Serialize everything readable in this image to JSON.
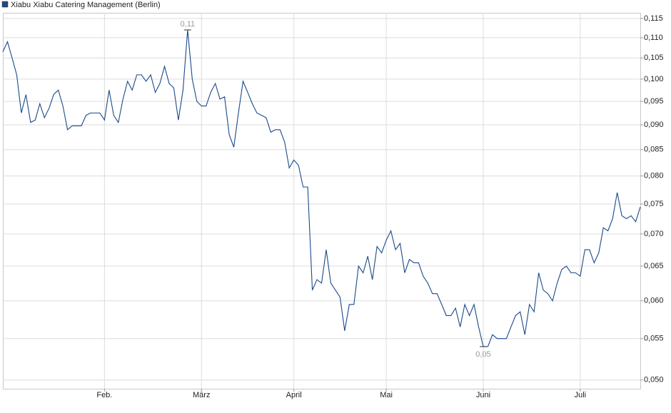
{
  "chart_data": {
    "type": "line",
    "log_scale": true,
    "grid": true,
    "legend": "top-left",
    "x": [
      0,
      1,
      2,
      3,
      4,
      5,
      6,
      7,
      8,
      9,
      10,
      11,
      12,
      13,
      14,
      15,
      16,
      17,
      18,
      19,
      20,
      21,
      22,
      23,
      24,
      25,
      26,
      27,
      28,
      29,
      30,
      31,
      32,
      33,
      34,
      35,
      36,
      37,
      38,
      39,
      40,
      41,
      42,
      43,
      44,
      45,
      46,
      47,
      48,
      49,
      50,
      51,
      52,
      53,
      54,
      55,
      56,
      57,
      58,
      59,
      60,
      61,
      62,
      63,
      64,
      65,
      66,
      67,
      68,
      69,
      70,
      71,
      72,
      73,
      74,
      75,
      76,
      77,
      78,
      79,
      80,
      81,
      82,
      83,
      84,
      85,
      86,
      87,
      88,
      89,
      90,
      91,
      92,
      93,
      94,
      95,
      96,
      97,
      98,
      99,
      100,
      101,
      102,
      103,
      104,
      105,
      106,
      107,
      108,
      109,
      110,
      111,
      112,
      113,
      114,
      115,
      116,
      117,
      118,
      119,
      120,
      121,
      122,
      123,
      124,
      125,
      126,
      127,
      128,
      129,
      130,
      131,
      132,
      133,
      134,
      135,
      136,
      137,
      138
    ],
    "series": [
      {
        "name": "Xiabu Xiabu Catering Management (Berlin)",
        "color": "#1a4a8a",
        "values": [
          0.1065,
          0.109,
          0.105,
          0.101,
          0.0925,
          0.0965,
          0.0905,
          0.091,
          0.0945,
          0.0915,
          0.0935,
          0.0965,
          0.0975,
          0.094,
          0.089,
          0.0898,
          0.0898,
          0.0898,
          0.092,
          0.0925,
          0.0925,
          0.0925,
          0.091,
          0.0975,
          0.092,
          0.0905,
          0.0955,
          0.0995,
          0.0975,
          0.101,
          0.101,
          0.0995,
          0.101,
          0.097,
          0.099,
          0.103,
          0.099,
          0.098,
          0.091,
          0.0975,
          0.112,
          0.1,
          0.095,
          0.094,
          0.094,
          0.097,
          0.099,
          0.0955,
          0.096,
          0.088,
          0.0855,
          0.0925,
          0.0995,
          0.097,
          0.0945,
          0.0925,
          0.092,
          0.0915,
          0.0885,
          0.089,
          0.089,
          0.0865,
          0.0815,
          0.083,
          0.082,
          0.078,
          0.078,
          0.0615,
          0.063,
          0.0625,
          0.0675,
          0.0625,
          0.0615,
          0.0605,
          0.056,
          0.0595,
          0.0595,
          0.065,
          0.064,
          0.0665,
          0.063,
          0.068,
          0.067,
          0.069,
          0.0705,
          0.0675,
          0.0685,
          0.064,
          0.066,
          0.0655,
          0.0655,
          0.0635,
          0.0625,
          0.061,
          0.061,
          0.0595,
          0.058,
          0.058,
          0.059,
          0.0565,
          0.0595,
          0.058,
          0.0595,
          0.0565,
          0.054,
          0.054,
          0.0555,
          0.055,
          0.055,
          0.055,
          0.0565,
          0.058,
          0.0585,
          0.0555,
          0.0595,
          0.0585,
          0.064,
          0.0615,
          0.061,
          0.06,
          0.0625,
          0.0645,
          0.065,
          0.064,
          0.064,
          0.0635,
          0.0675,
          0.0675,
          0.0655,
          0.067,
          0.071,
          0.0705,
          0.0725,
          0.077,
          0.073,
          0.0725,
          0.073,
          0.072,
          0.0745
        ]
      }
    ],
    "xlim": [
      0,
      138
    ],
    "xticks": [
      {
        "value": 22,
        "label": "Feb."
      },
      {
        "value": 43,
        "label": "März"
      },
      {
        "value": 63,
        "label": "April"
      },
      {
        "value": 83,
        "label": "Mai"
      },
      {
        "value": 104,
        "label": "Juni"
      },
      {
        "value": 125,
        "label": "Juli"
      }
    ],
    "ylim": [
      0.049,
      0.1165
    ],
    "yticks": [
      {
        "value": 0.05,
        "label": "0,050"
      },
      {
        "value": 0.055,
        "label": "0,055"
      },
      {
        "value": 0.06,
        "label": "0,060"
      },
      {
        "value": 0.065,
        "label": "0,065"
      },
      {
        "value": 0.07,
        "label": "0,070"
      },
      {
        "value": 0.075,
        "label": "0,075"
      },
      {
        "value": 0.08,
        "label": "0,080"
      },
      {
        "value": 0.085,
        "label": "0,085"
      },
      {
        "value": 0.09,
        "label": "0,090"
      },
      {
        "value": 0.095,
        "label": "0,095"
      },
      {
        "value": 0.1,
        "label": "0,100"
      },
      {
        "value": 0.105,
        "label": "0,105"
      },
      {
        "value": 0.11,
        "label": "0,110"
      },
      {
        "value": 0.115,
        "label": "0,115"
      }
    ],
    "annotations": [
      {
        "index": 40,
        "label": "0,11",
        "position": "above"
      },
      {
        "index": 104,
        "label": "0,05",
        "position": "below"
      }
    ]
  }
}
